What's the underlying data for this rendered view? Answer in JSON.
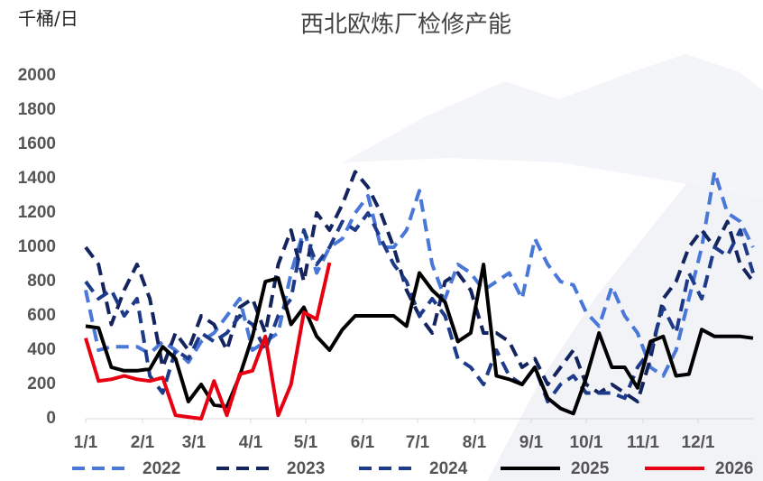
{
  "chart_data": {
    "type": "line",
    "title": "西北欧炼厂检修产能",
    "y_label": "千桶/日",
    "x": [
      0,
      7,
      14,
      21,
      28,
      35,
      42,
      49,
      56,
      63,
      70,
      77,
      84,
      91,
      98,
      105,
      112,
      119,
      126,
      133,
      140,
      147,
      154,
      161,
      168,
      175,
      182,
      189,
      196,
      203,
      210,
      217,
      224,
      231,
      238,
      245,
      252,
      259,
      266,
      273,
      280,
      287,
      294,
      301,
      308,
      315,
      322,
      329,
      336,
      343,
      350,
      357,
      364
    ],
    "xlim": [
      0,
      364
    ],
    "xticks": [
      {
        "value": 0,
        "label": "1/1"
      },
      {
        "value": 31,
        "label": "2/1"
      },
      {
        "value": 59,
        "label": "3/1"
      },
      {
        "value": 90,
        "label": "4/1"
      },
      {
        "value": 120,
        "label": "5/1"
      },
      {
        "value": 151,
        "label": "6/1"
      },
      {
        "value": 181,
        "label": "7/1"
      },
      {
        "value": 212,
        "label": "8/1"
      },
      {
        "value": 243,
        "label": "9/1"
      },
      {
        "value": 273,
        "label": "10/1"
      },
      {
        "value": 304,
        "label": "11/1"
      },
      {
        "value": 334,
        "label": "12/1"
      }
    ],
    "ylim": [
      0,
      2000
    ],
    "yticks": [
      0,
      200,
      400,
      600,
      800,
      1000,
      1200,
      1400,
      1600,
      1800,
      2000
    ],
    "series": [
      {
        "name": "2022",
        "color": "#4a78d8",
        "dashed": true,
        "values": [
          750,
          400,
          420,
          420,
          420,
          380,
          450,
          400,
          330,
          450,
          500,
          600,
          700,
          400,
          450,
          500,
          850,
          1100,
          850,
          1000,
          1050,
          1200,
          1300,
          1000,
          1000,
          1100,
          1330,
          900,
          700,
          900,
          850,
          750,
          800,
          850,
          700,
          1050,
          900,
          800,
          780,
          620,
          540,
          770,
          600,
          500,
          300,
          250,
          400,
          700,
          1000,
          1440,
          1200,
          1150,
          1000
        ]
      },
      {
        "name": "2023",
        "color": "#14245e",
        "dashed": true,
        "values": [
          1000,
          900,
          550,
          750,
          900,
          700,
          300,
          500,
          400,
          600,
          550,
          400,
          650,
          700,
          500,
          900,
          1100,
          800,
          1200,
          1100,
          1250,
          1440,
          1350,
          1200,
          1000,
          750,
          600,
          500,
          800,
          850,
          750,
          500,
          500,
          450,
          300,
          350,
          200,
          300,
          400,
          200,
          150,
          200,
          150,
          100,
          350,
          700,
          800,
          1000,
          1100,
          1000,
          1150,
          900,
          800
        ]
      },
      {
        "name": "2024",
        "color": "#1d3b8a",
        "dashed": true,
        "values": [
          800,
          700,
          750,
          600,
          700,
          250,
          150,
          400,
          350,
          500,
          450,
          500,
          600,
          550,
          400,
          600,
          700,
          1100,
          900,
          1000,
          1150,
          1100,
          1200,
          1050,
          900,
          800,
          600,
          700,
          600,
          350,
          300,
          200,
          400,
          250,
          200,
          300,
          100,
          200,
          250,
          150,
          150,
          150,
          120,
          300,
          400,
          650,
          500,
          850,
          700,
          1000,
          950,
          1100,
          850
        ]
      },
      {
        "name": "2025",
        "color": "#000000",
        "dashed": false,
        "values": [
          540,
          530,
          300,
          280,
          280,
          290,
          420,
          350,
          100,
          200,
          80,
          70,
          250,
          480,
          800,
          820,
          550,
          650,
          480,
          400,
          520,
          600,
          600,
          600,
          600,
          540,
          850,
          750,
          680,
          450,
          500,
          900,
          250,
          230,
          200,
          300,
          120,
          60,
          30,
          240,
          500,
          300,
          300,
          180,
          450,
          480,
          250,
          260,
          520,
          480,
          480,
          480,
          470
        ]
      },
      {
        "name": "2026",
        "color": "#e60012",
        "dashed": false,
        "values": [
          470,
          220,
          230,
          250,
          230,
          220,
          240,
          20,
          10,
          0,
          220,
          20,
          260,
          280,
          480,
          20,
          200,
          620,
          580,
          910,
          null,
          null,
          null,
          null,
          null,
          null,
          null,
          null,
          null,
          null,
          null,
          null,
          null,
          null,
          null,
          null,
          null,
          null,
          null,
          null,
          null,
          null,
          null,
          null,
          null,
          null,
          null,
          null,
          null,
          null,
          null,
          null,
          null
        ]
      }
    ]
  }
}
